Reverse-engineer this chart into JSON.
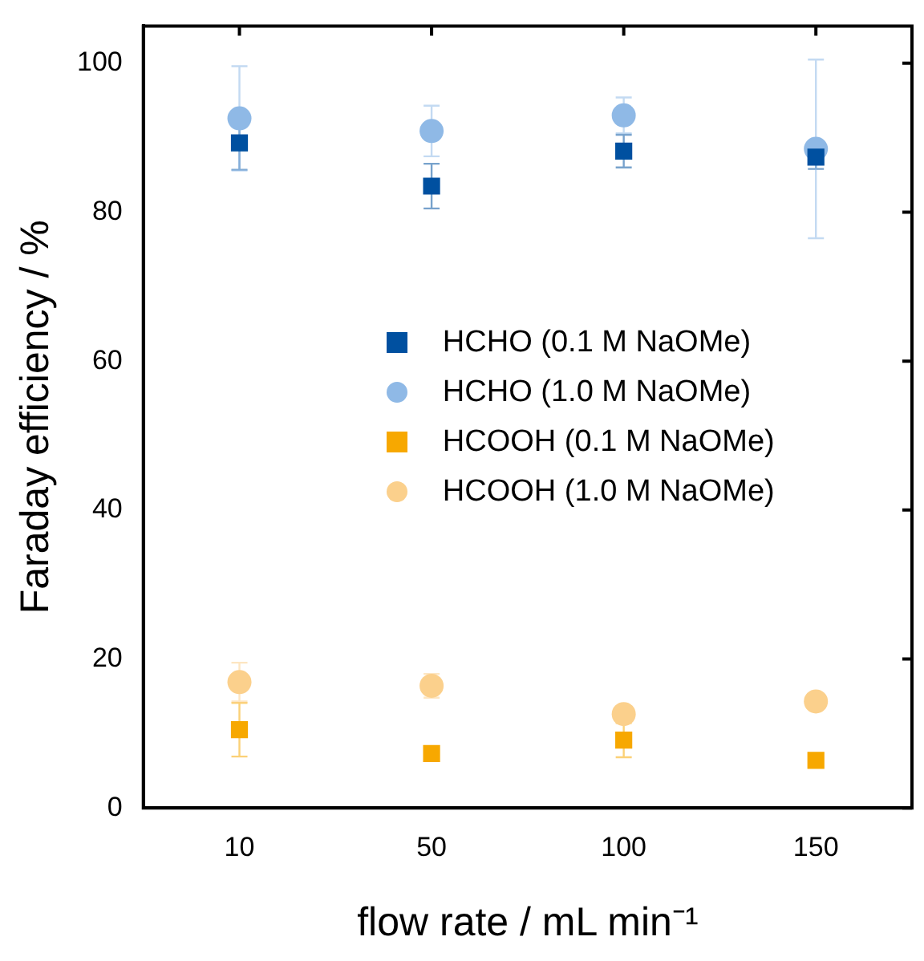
{
  "chart_data": {
    "type": "scatter",
    "xlabel": "flow rate / mL min⁻¹",
    "ylabel": "Faraday efficiency / %",
    "categories": [
      "10",
      "50",
      "100",
      "150"
    ],
    "ylim": [
      0,
      105
    ],
    "yticks": [
      0,
      20,
      40,
      60,
      80,
      100
    ],
    "grid": false,
    "legend": "center",
    "series": [
      {
        "name": "HCHO (0.1 M NaOMe)",
        "color": "#0050a0",
        "marker": "square",
        "values": [
          89.3,
          83.5,
          88.2,
          87.4
        ],
        "errors": [
          3.6,
          3,
          2.2,
          1.6
        ]
      },
      {
        "name": "HCHO (1.0 M NaOMe)",
        "color": "#8fb9e6",
        "marker": "circle",
        "values": [
          92.6,
          90.9,
          93.0,
          88.5
        ],
        "errors": [
          7,
          3.4,
          2.4,
          12
        ]
      },
      {
        "name": "HCOOH (0.1 M NaOMe)",
        "color": "#f7a800",
        "marker": "square",
        "values": [
          10.5,
          7.3,
          9.1,
          6.4
        ],
        "errors": [
          3.6,
          null,
          2.3,
          null
        ]
      },
      {
        "name": "HCOOH (1.0 M NaOMe)",
        "color": "#fbd08c",
        "marker": "circle",
        "values": [
          16.9,
          16.4,
          12.6,
          14.3
        ],
        "errors": [
          2.6,
          1.6,
          null,
          null
        ]
      }
    ]
  }
}
